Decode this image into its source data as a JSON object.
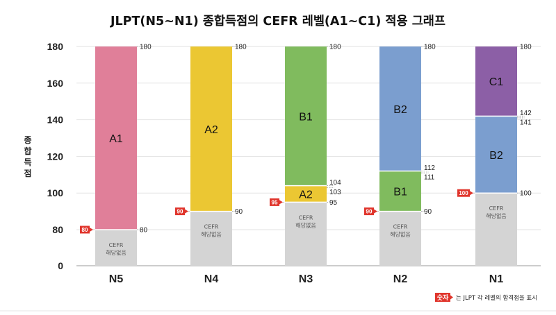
{
  "chart_data": {
    "type": "bar",
    "title": "JLPT(N5~N1) 종합득점의 CEFR 레벨(A1~C1) 적용 그래프",
    "ylabel": "종합득점",
    "ylim": [
      0,
      180
    ],
    "yticks": [
      "0",
      "80",
      "100",
      "120",
      "140",
      "160",
      "180"
    ],
    "grid": true,
    "categories": [
      "N5",
      "N4",
      "N3",
      "N2",
      "N1"
    ],
    "pass_scores": [
      80,
      90,
      95,
      90,
      100
    ],
    "stacks": [
      {
        "category": "N5",
        "segments": [
          {
            "label": "CEFR\n해당없음",
            "from": 0,
            "to": 80
          },
          {
            "label": "A1",
            "from": 80,
            "to": 180
          }
        ],
        "boundary_labels": [
          {
            "value": 80,
            "text": "80"
          },
          {
            "value": 180,
            "text": "180"
          }
        ]
      },
      {
        "category": "N4",
        "segments": [
          {
            "label": "CEFR\n해당없음",
            "from": 0,
            "to": 90
          },
          {
            "label": "A2",
            "from": 90,
            "to": 180
          }
        ],
        "boundary_labels": [
          {
            "value": 90,
            "text": "90"
          },
          {
            "value": 180,
            "text": "180"
          }
        ]
      },
      {
        "category": "N3",
        "segments": [
          {
            "label": "CEFR\n해당없음",
            "from": 0,
            "to": 95
          },
          {
            "label": "A2",
            "from": 95,
            "to": 104
          },
          {
            "label": "B1",
            "from": 104,
            "to": 180
          }
        ],
        "boundary_labels": [
          {
            "value": 95,
            "text": "95"
          },
          {
            "value": 103,
            "text": "103"
          },
          {
            "value": 104,
            "text": "104"
          },
          {
            "value": 180,
            "text": "180"
          }
        ]
      },
      {
        "category": "N2",
        "segments": [
          {
            "label": "CEFR\n해당없음",
            "from": 0,
            "to": 90
          },
          {
            "label": "B1",
            "from": 90,
            "to": 112
          },
          {
            "label": "B2",
            "from": 112,
            "to": 180
          }
        ],
        "boundary_labels": [
          {
            "value": 90,
            "text": "90"
          },
          {
            "value": 111,
            "text": "111"
          },
          {
            "value": 112,
            "text": "112"
          },
          {
            "value": 180,
            "text": "180"
          }
        ]
      },
      {
        "category": "N1",
        "segments": [
          {
            "label": "CEFR\n해당없음",
            "from": 0,
            "to": 100
          },
          {
            "label": "B2",
            "from": 100,
            "to": 142
          },
          {
            "label": "C1",
            "from": 142,
            "to": 180
          }
        ],
        "boundary_labels": [
          {
            "value": 100,
            "text": "100"
          },
          {
            "value": 141,
            "text": "141"
          },
          {
            "value": 142,
            "text": "142"
          },
          {
            "value": 180,
            "text": "180"
          }
        ]
      }
    ],
    "colors": {
      "CEFR\n해당없음": "#d4d4d4",
      "A1": "#e07f99",
      "A2": "#ebc733",
      "B1": "#80bb5e",
      "B2": "#7b9ecf",
      "C1": "#8c5fa6",
      "pass_badge": "#e0352c"
    },
    "note": {
      "badge": "숫자",
      "text": "는 JLPT 각 레벨의 합격점을 표시"
    }
  }
}
